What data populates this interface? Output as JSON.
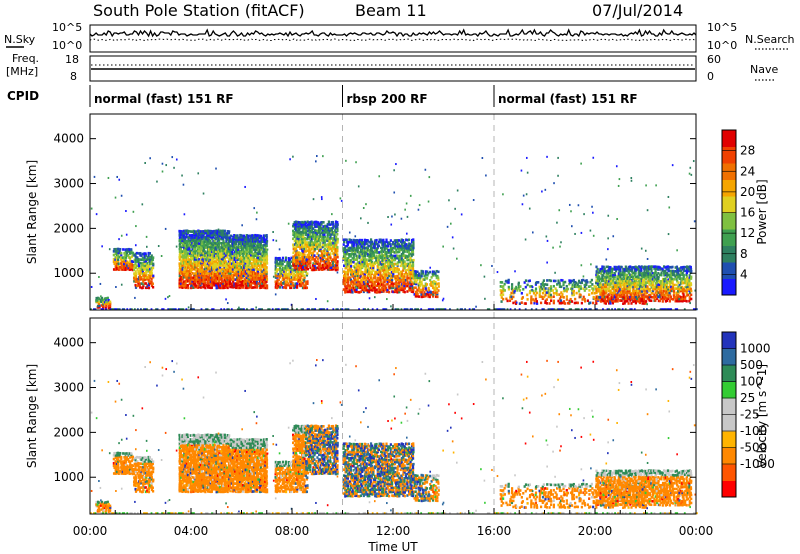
{
  "header": {
    "title": "South Pole Station (fitACF)",
    "beam": "Beam 11",
    "date": "07/Jul/2014"
  },
  "top_panels": {
    "nsky_label": "N.Sky",
    "nsky_tick_top": "10^5",
    "nsky_tick_bottom": "10^0",
    "nsearch_label": "N.Search",
    "nsearch_tick_top": "10^5",
    "nsearch_tick_bottom": "10^0",
    "freq_label": "Freq.",
    "freq_unit": "[MHz]",
    "freq_tick_top": "18",
    "freq_tick_bottom": "8",
    "nave_label": "Nave",
    "nave_tick_top": "60",
    "nave_tick_bottom": "0",
    "cpid_label": "CPID",
    "cpid_segments": [
      {
        "label": "normal (fast) 151 RF",
        "start": 0,
        "end": 10
      },
      {
        "label": "rbsp 200 RF",
        "start": 10,
        "end": 16
      },
      {
        "label": "normal (fast) 151 RF",
        "start": 16,
        "end": 24
      }
    ]
  },
  "colors": {
    "power_scale": [
      "#1a1aff",
      "#1f4fb0",
      "#2e8060",
      "#3fa050",
      "#7fc040",
      "#e0d020",
      "#f5a500",
      "#f07000",
      "#f04000",
      "#e00000"
    ],
    "velocity_scale": [
      "#ff0000",
      "#ff5500",
      "#ff8800",
      "#ffb400",
      "#c8c8c8",
      "#c8c8c8",
      "#33cc33",
      "#2e8b57",
      "#2e6ba0",
      "#2233bb"
    ]
  },
  "chart_data": [
    {
      "type": "heatmap",
      "name": "power",
      "ylabel": "Slant Range [km]",
      "xlim": [
        0,
        24
      ],
      "ylim": [
        180,
        4550
      ],
      "yticks": [
        1000,
        2000,
        3000,
        4000
      ],
      "colorbar": {
        "label": "Power [dB]",
        "range": [
          0,
          32
        ],
        "ticks": [
          "4",
          "8",
          "12",
          "16",
          "20",
          "24",
          "28"
        ]
      }
    },
    {
      "type": "heatmap",
      "name": "velocity",
      "ylabel": "Slant Range [km]",
      "xlabel": "Time UT",
      "xlim": [
        0,
        24
      ],
      "ylim": [
        180,
        4550
      ],
      "yticks": [
        1000,
        2000,
        3000,
        4000
      ],
      "xticks": [
        "00:00",
        "04:00",
        "08:00",
        "12:00",
        "16:00",
        "20:00",
        "00:00"
      ],
      "colorbar": {
        "label": "Velocity [m s^-1]",
        "ticks": [
          "1000",
          "500",
          "100",
          "25",
          "-25",
          "-100",
          "-500",
          "-1000"
        ]
      }
    }
  ]
}
